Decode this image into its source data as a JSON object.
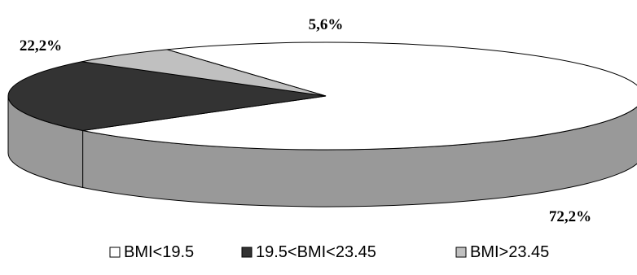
{
  "chart_data": {
    "type": "pie",
    "style": "3d",
    "title": "",
    "legend_placement": "bottom",
    "series": [
      {
        "name": "BMI<19.5",
        "value": 72.2,
        "label": "72,2%",
        "color": "#ffffff"
      },
      {
        "name": "19.5<BMI<23.45",
        "value": 22.2,
        "label": "22,2%",
        "color": "#333333"
      },
      {
        "name": "BMI>23.45",
        "value": 5.6,
        "label": "5,6%",
        "color": "#c0c0c0"
      }
    ],
    "side_color": "#999999"
  }
}
